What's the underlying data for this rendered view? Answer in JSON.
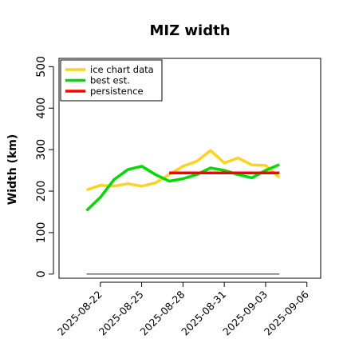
{
  "chart_data": {
    "type": "line",
    "title": "MIZ width",
    "xlabel": "",
    "ylabel": "Width (km)",
    "ylim": [
      -10,
      520
    ],
    "xlim": [
      "2025-08-19",
      "2025-09-07"
    ],
    "grid": false,
    "legend_position": "top-left",
    "y_ticks": [
      0,
      100,
      200,
      300,
      400,
      500
    ],
    "y_tick_labels": [
      "0",
      "100",
      "200",
      "300",
      "400",
      "500"
    ],
    "x_ticks": [
      "2025-08-22",
      "2025-08-25",
      "2025-08-28",
      "2025-08-31",
      "2025-09-03",
      "2025-09-06"
    ],
    "x_tick_labels": [
      "2025-08-22",
      "2025-08-25",
      "2025-08-28",
      "2025-08-31",
      "2025-09-03",
      "2025-09-06"
    ],
    "series": [
      {
        "name": "ice chart data",
        "color": "#ffd21f",
        "x": [
          "2025-08-21",
          "2025-08-22",
          "2025-08-23",
          "2025-08-24",
          "2025-08-25",
          "2025-08-26",
          "2025-08-27",
          "2025-08-28",
          "2025-08-29",
          "2025-08-30",
          "2025-08-31",
          "2025-09-01",
          "2025-09-02",
          "2025-09-03",
          "2025-09-04"
        ],
        "values": [
          203,
          214,
          212,
          218,
          212,
          220,
          240,
          260,
          272,
          298,
          268,
          280,
          263,
          262,
          233
        ]
      },
      {
        "name": "best est.",
        "color": "#00dd00",
        "x": [
          "2025-08-21",
          "2025-08-22",
          "2025-08-23",
          "2025-08-24",
          "2025-08-25",
          "2025-08-26",
          "2025-08-27",
          "2025-08-28",
          "2025-08-29",
          "2025-08-30",
          "2025-08-31",
          "2025-09-01",
          "2025-09-02",
          "2025-09-03",
          "2025-09-04"
        ],
        "values": [
          153,
          185,
          228,
          252,
          260,
          240,
          224,
          230,
          240,
          256,
          250,
          240,
          232,
          250,
          264
        ]
      },
      {
        "name": "persistence",
        "color": "#ff0000",
        "x": [
          "2025-08-27",
          "2025-09-04"
        ],
        "values": [
          244,
          244
        ]
      }
    ],
    "baseline": {
      "color": "#666666",
      "x": [
        "2025-08-21",
        "2025-09-04"
      ],
      "values": [
        0,
        0
      ]
    }
  }
}
